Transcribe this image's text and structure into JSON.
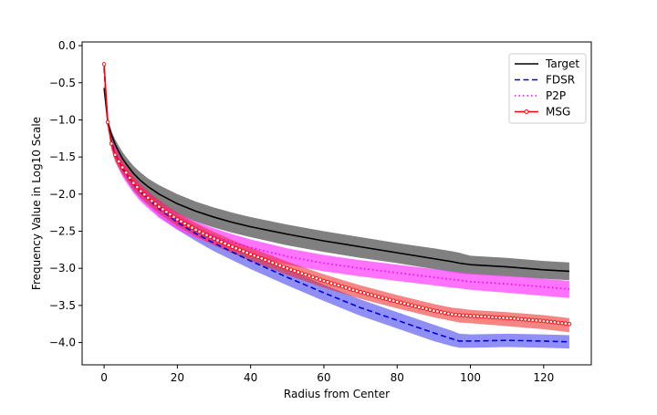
{
  "chart_data": {
    "type": "line",
    "title": "",
    "xlabel": "Radius from Center",
    "ylabel": "Frequency Value in Log10 Scale",
    "xlim": [
      -6,
      133
    ],
    "ylim": [
      -4.3,
      0.05
    ],
    "xticks": [
      0,
      20,
      40,
      60,
      80,
      100,
      120
    ],
    "yticks": [
      0.0,
      -0.5,
      -1.0,
      -1.5,
      -2.0,
      -2.5,
      -3.0,
      -3.5,
      -4.0
    ],
    "xtick_labels": [
      "0",
      "20",
      "40",
      "60",
      "80",
      "100",
      "120"
    ],
    "ytick_labels": [
      "0.0",
      "−0.5",
      "−1.0",
      "−1.5",
      "−2.0",
      "−2.5",
      "−3.0",
      "−3.5",
      "−4.0"
    ],
    "grid": false,
    "legend_position": "top-right",
    "x": [
      0,
      1,
      2,
      3,
      4,
      5,
      6,
      8,
      10,
      12,
      15,
      20,
      25,
      30,
      35,
      40,
      50,
      60,
      70,
      80,
      90,
      95,
      97,
      100,
      110,
      120,
      127
    ],
    "series": [
      {
        "name": "Target",
        "color": "#000000",
        "dash": "solid",
        "band_color": "#555555",
        "band_opacity": 0.75,
        "values": [
          -0.57,
          -1.02,
          -1.2,
          -1.33,
          -1.43,
          -1.52,
          -1.59,
          -1.72,
          -1.82,
          -1.9,
          -2.0,
          -2.13,
          -2.23,
          -2.31,
          -2.38,
          -2.44,
          -2.54,
          -2.63,
          -2.71,
          -2.79,
          -2.87,
          -2.91,
          -2.93,
          -2.95,
          -2.98,
          -3.02,
          -3.04
        ],
        "band_lower": [
          -0.57,
          -1.04,
          -1.25,
          -1.4,
          -1.51,
          -1.6,
          -1.68,
          -1.82,
          -1.93,
          -2.02,
          -2.13,
          -2.27,
          -2.37,
          -2.45,
          -2.52,
          -2.58,
          -2.69,
          -2.78,
          -2.86,
          -2.93,
          -3.01,
          -3.05,
          -3.07,
          -3.08,
          -3.11,
          -3.14,
          -3.16
        ],
        "band_upper": [
          -0.57,
          -1.0,
          -1.15,
          -1.26,
          -1.35,
          -1.43,
          -1.5,
          -1.62,
          -1.71,
          -1.79,
          -1.88,
          -2.0,
          -2.1,
          -2.18,
          -2.25,
          -2.31,
          -2.41,
          -2.5,
          -2.58,
          -2.66,
          -2.73,
          -2.77,
          -2.79,
          -2.83,
          -2.86,
          -2.9,
          -2.92
        ]
      },
      {
        "name": "FDSR",
        "color": "#0000dd",
        "dash": "6,3.5",
        "band_color": "#3333ee",
        "band_opacity": 0.55,
        "values": [
          -0.3,
          -1.05,
          -1.3,
          -1.45,
          -1.55,
          -1.65,
          -1.73,
          -1.87,
          -1.98,
          -2.07,
          -2.2,
          -2.38,
          -2.53,
          -2.66,
          -2.78,
          -2.9,
          -3.12,
          -3.33,
          -3.53,
          -3.7,
          -3.87,
          -3.95,
          -3.98,
          -3.98,
          -3.97,
          -3.98,
          -3.99
        ],
        "band_lower": [
          -0.3,
          -1.08,
          -1.36,
          -1.52,
          -1.63,
          -1.73,
          -1.81,
          -1.96,
          -2.07,
          -2.16,
          -2.3,
          -2.48,
          -2.63,
          -2.77,
          -2.89,
          -3.01,
          -3.23,
          -3.44,
          -3.64,
          -3.81,
          -3.98,
          -4.05,
          -4.07,
          -4.07,
          -4.06,
          -4.07,
          -4.08
        ],
        "band_upper": [
          -0.3,
          -1.02,
          -1.24,
          -1.38,
          -1.47,
          -1.57,
          -1.65,
          -1.78,
          -1.89,
          -1.98,
          -2.1,
          -2.28,
          -2.43,
          -2.55,
          -2.67,
          -2.79,
          -3.01,
          -3.22,
          -3.42,
          -3.59,
          -3.76,
          -3.84,
          -3.88,
          -3.89,
          -3.88,
          -3.89,
          -3.9
        ]
      },
      {
        "name": "P2P",
        "color": "#ee00ee",
        "dash": "1.5,3",
        "band_color": "#ff44ff",
        "band_opacity": 0.75,
        "values": [
          -0.3,
          -1.05,
          -1.3,
          -1.45,
          -1.55,
          -1.65,
          -1.73,
          -1.87,
          -1.98,
          -2.07,
          -2.2,
          -2.36,
          -2.48,
          -2.57,
          -2.65,
          -2.72,
          -2.84,
          -2.93,
          -3.0,
          -3.06,
          -3.12,
          -3.15,
          -3.16,
          -3.18,
          -3.21,
          -3.25,
          -3.28
        ],
        "band_lower": [
          -0.3,
          -1.08,
          -1.37,
          -1.55,
          -1.66,
          -1.76,
          -1.84,
          -1.98,
          -2.1,
          -2.19,
          -2.32,
          -2.48,
          -2.59,
          -2.68,
          -2.76,
          -2.83,
          -2.95,
          -3.04,
          -3.11,
          -3.17,
          -3.23,
          -3.26,
          -3.27,
          -3.29,
          -3.33,
          -3.37,
          -3.4
        ],
        "band_upper": [
          -0.3,
          -1.02,
          -1.24,
          -1.37,
          -1.46,
          -1.55,
          -1.63,
          -1.77,
          -1.88,
          -1.97,
          -2.09,
          -2.25,
          -2.37,
          -2.46,
          -2.54,
          -2.61,
          -2.73,
          -2.82,
          -2.89,
          -2.95,
          -3.01,
          -3.04,
          -3.05,
          -3.07,
          -3.1,
          -3.14,
          -3.17
        ]
      },
      {
        "name": "MSG",
        "color": "#ff0000",
        "dash": "solid",
        "marker": "circle",
        "band_color": "#ee2222",
        "band_opacity": 0.55,
        "values": [
          -0.25,
          -1.03,
          -1.32,
          -1.47,
          -1.56,
          -1.64,
          -1.71,
          -1.85,
          -1.96,
          -2.05,
          -2.17,
          -2.34,
          -2.48,
          -2.6,
          -2.71,
          -2.81,
          -3.0,
          -3.17,
          -3.32,
          -3.45,
          -3.57,
          -3.62,
          -3.63,
          -3.64,
          -3.67,
          -3.71,
          -3.75
        ],
        "band_lower": [
          -0.25,
          -1.06,
          -1.4,
          -1.56,
          -1.65,
          -1.73,
          -1.8,
          -1.94,
          -2.05,
          -2.14,
          -2.26,
          -2.43,
          -2.57,
          -2.69,
          -2.8,
          -2.9,
          -3.09,
          -3.26,
          -3.41,
          -3.54,
          -3.66,
          -3.71,
          -3.73,
          -3.74,
          -3.78,
          -3.82,
          -3.86
        ],
        "band_upper": [
          -0.25,
          -1.0,
          -1.24,
          -1.38,
          -1.47,
          -1.55,
          -1.62,
          -1.76,
          -1.87,
          -1.96,
          -2.08,
          -2.25,
          -2.39,
          -2.51,
          -2.62,
          -2.72,
          -2.91,
          -3.08,
          -3.23,
          -3.36,
          -3.48,
          -3.53,
          -3.54,
          -3.56,
          -3.59,
          -3.63,
          -3.67
        ]
      }
    ]
  }
}
